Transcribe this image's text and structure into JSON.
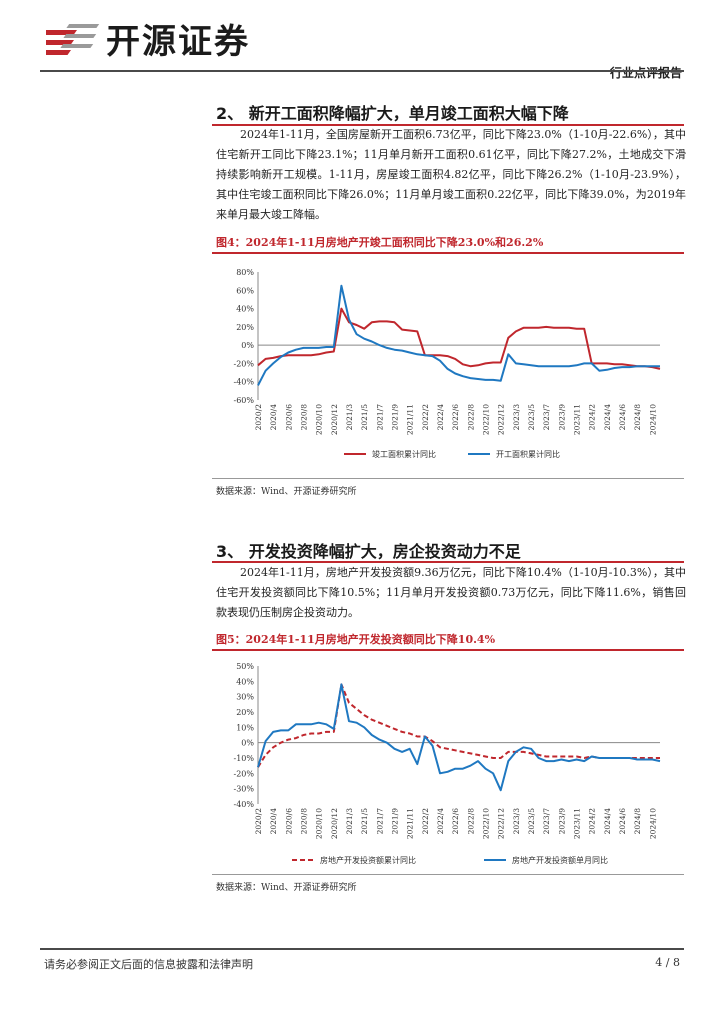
{
  "header": {
    "brand": "开源证券",
    "report_type": "行业点评报告"
  },
  "colors": {
    "accent": "#c0272d",
    "series_blue": "#1f78c1",
    "series_red": "#c0272d"
  },
  "sections": [
    {
      "title": "2、 新开工面积降幅扩大，单月竣工面积大幅下降",
      "paragraph": "2024年1-11月，全国房屋新开工面积6.73亿平，同比下降23.0%（1-10月-22.6%），其中住宅新开工同比下降23.1%；11月单月新开工面积0.61亿平，同比下降27.2%，土地成交下滑持续影响新开工规模。1-11月，房屋竣工面积4.82亿平，同比下降26.2%（1-10月-23.9%），其中住宅竣工面积同比下降26.0%；11月单月竣工面积0.22亿平，同比下降39.0%，为2019年来单月最大竣工降幅。"
    },
    {
      "title": "3、 开发投资降幅扩大，房企投资动力不足",
      "paragraph": "2024年1-11月，房地产开发投资额9.36万亿元，同比下降10.4%（1-10月-10.3%），其中住宅开发投资额同比下降10.5%；11月单月开发投资额0.73万亿元，同比下降11.6%，销售回款表现仍压制房企投资动力。"
    }
  ],
  "figures": [
    {
      "title": "图4：2024年1-11月房地产开竣工面积同比下降23.0%和26.2%",
      "source": "数据来源：Wind、开源证券研究所"
    },
    {
      "title": "图5：2024年1-11月房地产开发投资额同比下降10.4%",
      "source": "数据来源：Wind、开源证券研究所"
    }
  ],
  "chart_data": [
    {
      "type": "line",
      "ylim": [
        -60,
        80
      ],
      "yticks": [
        "80%",
        "60%",
        "40%",
        "20%",
        "0%",
        "-20%",
        "-40%",
        "-60%"
      ],
      "ytick_values": [
        80,
        60,
        40,
        20,
        0,
        -20,
        -40,
        -60
      ],
      "grid": false,
      "legend_position": "bottom",
      "x": [
        "2020/2",
        "2020/3",
        "2020/4",
        "2020/5",
        "2020/6",
        "2020/7",
        "2020/8",
        "2020/9",
        "2020/10",
        "2020/11",
        "2020/12",
        "2021/2",
        "2021/3",
        "2021/4",
        "2021/5",
        "2021/6",
        "2021/7",
        "2021/8",
        "2021/9",
        "2021/10",
        "2021/11",
        "2021/12",
        "2022/2",
        "2022/3",
        "2022/4",
        "2022/5",
        "2022/6",
        "2022/7",
        "2022/8",
        "2022/9",
        "2022/10",
        "2022/11",
        "2022/12",
        "2023/2",
        "2023/3",
        "2023/4",
        "2023/5",
        "2023/6",
        "2023/7",
        "2023/8",
        "2023/9",
        "2023/10",
        "2023/11",
        "2023/12",
        "2024/2",
        "2024/3",
        "2024/4",
        "2024/5",
        "2024/6",
        "2024/7",
        "2024/8",
        "2024/9",
        "2024/10",
        "2024/11"
      ],
      "xtick_labels": [
        "2020/2",
        "2020/4",
        "2020/6",
        "2020/8",
        "2020/10",
        "2020/12",
        "2021/3",
        "2021/5",
        "2021/7",
        "2021/9",
        "2021/11",
        "2022/2",
        "2022/4",
        "2022/6",
        "2022/8",
        "2022/10",
        "2022/12",
        "2023/3",
        "2023/5",
        "2023/7",
        "2023/9",
        "2023/11",
        "2024/2",
        "2024/4",
        "2024/6",
        "2024/8",
        "2024/10"
      ],
      "series": [
        {
          "name": "竣工面积累计同比",
          "color": "#c0272d",
          "values": [
            -22,
            -15,
            -14,
            -12,
            -11,
            -11,
            -11,
            -11,
            -10,
            -8,
            -7,
            40,
            25,
            22,
            18,
            25,
            26,
            26,
            25,
            17,
            16,
            15,
            -11,
            -11,
            -11,
            -12,
            -15,
            -21,
            -23,
            -22,
            -20,
            -19,
            -19,
            8,
            15,
            19,
            19,
            19,
            20,
            19,
            19,
            19,
            18,
            18,
            -20,
            -20,
            -20,
            -21,
            -21,
            -22,
            -23,
            -23,
            -24,
            -26
          ]
        },
        {
          "name": "开工面积累计同比",
          "color": "#1f78c1",
          "values": [
            -44,
            -28,
            -20,
            -13,
            -8,
            -5,
            -3,
            -3,
            -3,
            -2,
            -2,
            65,
            28,
            12,
            7,
            4,
            0,
            -3,
            -5,
            -6,
            -8,
            -10,
            -11,
            -12,
            -17,
            -26,
            -31,
            -34,
            -36,
            -37,
            -38,
            -38,
            -39,
            -10,
            -20,
            -21,
            -22,
            -23,
            -23,
            -23,
            -23,
            -23,
            -22,
            -20,
            -20,
            -28,
            -27,
            -25,
            -24,
            -24,
            -23,
            -23,
            -23,
            -23
          ]
        }
      ]
    },
    {
      "type": "line",
      "ylim": [
        -40,
        50
      ],
      "yticks": [
        "50%",
        "40%",
        "30%",
        "20%",
        "10%",
        "0%",
        "-10%",
        "-20%",
        "-30%",
        "-40%"
      ],
      "ytick_values": [
        50,
        40,
        30,
        20,
        10,
        0,
        -10,
        -20,
        -30,
        -40
      ],
      "grid": false,
      "legend_position": "bottom",
      "x": [
        "2020/2",
        "2020/3",
        "2020/4",
        "2020/5",
        "2020/6",
        "2020/7",
        "2020/8",
        "2020/9",
        "2020/10",
        "2020/11",
        "2020/12",
        "2021/2",
        "2021/3",
        "2021/4",
        "2021/5",
        "2021/6",
        "2021/7",
        "2021/8",
        "2021/9",
        "2021/10",
        "2021/11",
        "2021/12",
        "2022/2",
        "2022/3",
        "2022/4",
        "2022/5",
        "2022/6",
        "2022/7",
        "2022/8",
        "2022/9",
        "2022/10",
        "2022/11",
        "2022/12",
        "2023/2",
        "2023/3",
        "2023/4",
        "2023/5",
        "2023/6",
        "2023/7",
        "2023/8",
        "2023/9",
        "2023/10",
        "2023/11",
        "2023/12",
        "2024/2",
        "2024/3",
        "2024/4",
        "2024/5",
        "2024/6",
        "2024/7",
        "2024/8",
        "2024/9",
        "2024/10",
        "2024/11"
      ],
      "xtick_labels": [
        "2020/2",
        "2020/4",
        "2020/6",
        "2020/8",
        "2020/10",
        "2020/12",
        "2021/3",
        "2021/5",
        "2021/7",
        "2021/9",
        "2021/11",
        "2022/2",
        "2022/4",
        "2022/6",
        "2022/8",
        "2022/10",
        "2022/12",
        "2023/3",
        "2023/5",
        "2023/7",
        "2023/9",
        "2023/11",
        "2024/2",
        "2024/4",
        "2024/6",
        "2024/8",
        "2024/10"
      ],
      "series": [
        {
          "name": "房地产开发投资额累计同比",
          "color": "#c0272d",
          "dashed": true,
          "values": [
            -16,
            -8,
            -3,
            0,
            2,
            3,
            5,
            6,
            6,
            7,
            7,
            38,
            26,
            22,
            18,
            15,
            13,
            11,
            9,
            7,
            6,
            4,
            4,
            1,
            -3,
            -4,
            -5,
            -6,
            -7,
            -8,
            -9,
            -10,
            -10,
            -6,
            -6,
            -6,
            -7,
            -8,
            -9,
            -9,
            -9,
            -9,
            -9,
            -10,
            -9,
            -10,
            -10,
            -10,
            -10,
            -10,
            -10,
            -10,
            -10,
            -10
          ]
        },
        {
          "name": "房地产开发投资额单月同比",
          "color": "#1f78c1",
          "values": [
            -16,
            1,
            7,
            8,
            8,
            12,
            12,
            12,
            13,
            12,
            9,
            38,
            14,
            13,
            10,
            5,
            2,
            0,
            -4,
            -6,
            -4,
            -14,
            4,
            -2,
            -20,
            -19,
            -17,
            -17,
            -15,
            -12,
            -17,
            -20,
            -31,
            -12,
            -6,
            -3,
            -4,
            -10,
            -12,
            -12,
            -11,
            -12,
            -11,
            -12,
            -9,
            -10,
            -10,
            -10,
            -10,
            -10,
            -11,
            -11,
            -11,
            -12
          ]
        }
      ]
    }
  ],
  "footer": {
    "disclaimer": "请务必参阅正文后面的信息披露和法律声明",
    "page": "4 / 8"
  }
}
